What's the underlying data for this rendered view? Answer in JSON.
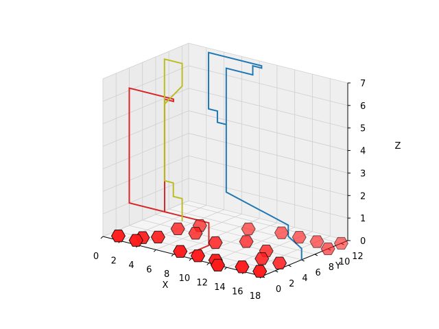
{
  "chart_data": {
    "type": "scatter",
    "projection": "3d",
    "title": "",
    "xlabel": "X",
    "ylabel": "Y",
    "zlabel": "Z",
    "xlim": [
      0,
      18
    ],
    "ylim": [
      0,
      13
    ],
    "zlim": [
      0,
      7
    ],
    "xticks": [
      "0",
      "2",
      "4",
      "6",
      "8",
      "10",
      "12",
      "14",
      "16",
      "18"
    ],
    "yticks": [
      "0",
      "2",
      "4",
      "6",
      "8",
      "10",
      "12"
    ],
    "zticks": [
      "0",
      "1",
      "2",
      "3",
      "4",
      "5",
      "6",
      "7"
    ],
    "grid": true,
    "pane_color": "#f2f2f2",
    "grid_color": "#cfcfcf",
    "points": [
      {
        "x": 1,
        "y": 1,
        "z": 0
      },
      {
        "x": 3,
        "y": 1,
        "z": 0
      },
      {
        "x": 3,
        "y": 2,
        "z": 0
      },
      {
        "x": 4,
        "y": 3,
        "z": 0
      },
      {
        "x": 8,
        "y": 1,
        "z": 0
      },
      {
        "x": 10,
        "y": 1,
        "z": 0
      },
      {
        "x": 12,
        "y": 1,
        "z": 0
      },
      {
        "x": 15,
        "y": 1,
        "z": 0
      },
      {
        "x": 17,
        "y": 1,
        "z": 0
      },
      {
        "x": 13,
        "y": 0,
        "z": 0
      },
      {
        "x": 4,
        "y": 6,
        "z": 0
      },
      {
        "x": 6,
        "y": 6,
        "z": 0
      },
      {
        "x": 5,
        "y": 8,
        "z": 0
      },
      {
        "x": 9,
        "y": 5,
        "z": 0
      },
      {
        "x": 11,
        "y": 7,
        "z": 0
      },
      {
        "x": 15,
        "y": 4,
        "z": 0
      },
      {
        "x": 14,
        "y": 6,
        "z": 0
      },
      {
        "x": 17,
        "y": 4,
        "z": 0
      },
      {
        "x": 9,
        "y": 10,
        "z": 0
      },
      {
        "x": 12,
        "y": 11,
        "z": 0
      },
      {
        "x": 14,
        "y": 11,
        "z": 0
      },
      {
        "x": 16,
        "y": 11,
        "z": 0
      },
      {
        "x": 18,
        "y": 10,
        "z": 0
      },
      {
        "x": 18,
        "y": 12,
        "z": 0
      }
    ],
    "paths": [
      {
        "color": "#1f77b4",
        "points": [
          [
            18,
            6,
            0
          ],
          [
            18,
            6,
            0.5
          ],
          [
            15,
            8,
            0.5
          ],
          [
            15,
            8,
            1
          ],
          [
            5,
            12,
            1
          ],
          [
            5,
            12,
            4
          ],
          [
            4,
            12,
            4
          ],
          [
            4,
            12,
            4.5
          ],
          [
            3,
            12,
            4.5
          ],
          [
            3,
            12,
            7
          ],
          [
            9,
            12,
            7
          ],
          [
            9,
            12,
            6.9
          ],
          [
            8,
            12,
            6.9
          ],
          [
            8,
            12,
            6.5
          ],
          [
            5,
            12,
            6.5
          ],
          [
            5,
            12,
            1.5
          ]
        ]
      },
      {
        "color": "#d62728",
        "points": [
          [
            9,
            1,
            0
          ],
          [
            9,
            4,
            0
          ],
          [
            9,
            4,
            1
          ],
          [
            4,
            4,
            1
          ],
          [
            4,
            4,
            6
          ],
          [
            5,
            4,
            6
          ],
          [
            5,
            4,
            6.1
          ],
          [
            0,
            4,
            6.1
          ],
          [
            0,
            4,
            5
          ],
          [
            0,
            4,
            1
          ],
          [
            4,
            4,
            1
          ]
        ]
      },
      {
        "color": "#bcbd22",
        "points": [
          [
            3,
            8,
            0
          ],
          [
            3,
            8,
            1
          ],
          [
            2,
            8,
            1
          ],
          [
            2,
            8,
            1.6
          ],
          [
            1,
            8,
            1.6
          ],
          [
            1,
            8,
            7
          ],
          [
            3,
            8,
            7
          ],
          [
            3,
            8,
            6
          ],
          [
            1,
            8,
            5
          ],
          [
            1,
            8,
            1.6
          ]
        ]
      }
    ]
  }
}
